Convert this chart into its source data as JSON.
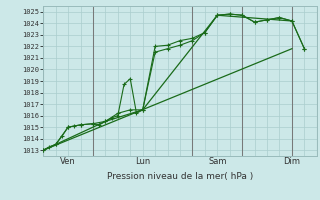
{
  "title": "Pression niveau de la mer( hPa )",
  "ylabel_ticks": [
    1013,
    1014,
    1015,
    1016,
    1017,
    1018,
    1019,
    1020,
    1021,
    1022,
    1023,
    1024,
    1025
  ],
  "ylim": [
    1012.5,
    1025.5
  ],
  "bg_color": "#cce8e8",
  "grid_color": "#aacece",
  "line_color": "#1a6b1a",
  "marker_color": "#1a6b1a",
  "major_vline_color": "#99bbbb",
  "xlim": [
    0,
    132
  ],
  "x_day_boundaries": [
    0,
    24,
    72,
    96,
    120,
    132
  ],
  "x_label_centers": [
    12,
    48,
    84,
    120
  ],
  "x_label_names": [
    "Ven",
    "Lun",
    "Sam",
    "Dim"
  ],
  "series_straight": {
    "x": [
      0,
      120
    ],
    "y": [
      1013.0,
      1021.8
    ]
  },
  "series_envelope": {
    "x": [
      0,
      30,
      48,
      84,
      120
    ],
    "y": [
      1013.0,
      1015.5,
      1016.5,
      1024.7,
      1024.2
    ]
  },
  "series_coarse": {
    "x": [
      0,
      6,
      12,
      18,
      24,
      30,
      36,
      42,
      48,
      54,
      60,
      66,
      72,
      78,
      84,
      90,
      96,
      102,
      108,
      114,
      120,
      126
    ],
    "y": [
      1013.0,
      1013.5,
      1015.0,
      1015.2,
      1015.3,
      1015.5,
      1016.2,
      1016.5,
      1016.5,
      1022.0,
      1022.1,
      1022.5,
      1022.7,
      1023.2,
      1024.7,
      1024.8,
      1024.7,
      1024.1,
      1024.3,
      1024.5,
      1024.2,
      1021.8
    ]
  },
  "series_detailed": {
    "x": [
      0,
      3,
      6,
      9,
      12,
      15,
      18,
      24,
      27,
      30,
      33,
      36,
      39,
      42,
      45,
      48,
      54,
      60,
      66,
      72,
      78,
      84,
      90,
      96,
      102,
      108,
      114,
      120,
      126
    ],
    "y": [
      1013.0,
      1013.3,
      1013.5,
      1014.2,
      1015.0,
      1015.1,
      1015.2,
      1015.3,
      1015.2,
      1015.5,
      1015.8,
      1016.0,
      1018.7,
      1019.2,
      1016.2,
      1016.5,
      1021.5,
      1021.8,
      1022.1,
      1022.5,
      1023.2,
      1024.7,
      1024.8,
      1024.7,
      1024.1,
      1024.3,
      1024.5,
      1024.2,
      1021.8
    ]
  }
}
